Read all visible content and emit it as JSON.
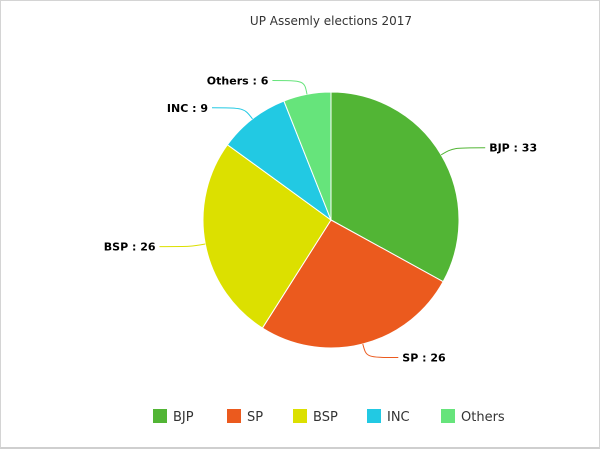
{
  "chart_data": {
    "type": "pie",
    "title": "UP Assemly elections 2017",
    "categories": [
      "BJP",
      "SP",
      "BSP",
      "INC",
      "Others"
    ],
    "values": [
      33,
      26,
      26,
      9,
      6
    ],
    "data_labels": [
      "BJP : 33",
      "SP : 26",
      "BSP : 26",
      "INC : 9",
      "Others : 6"
    ],
    "colors": [
      "#52b535",
      "#eb5a1e",
      "#dce000",
      "#22c9e3",
      "#66e47b"
    ],
    "legend": {
      "placement": "bottom",
      "items": [
        "BJP",
        "SP",
        "BSP",
        "INC",
        "Others"
      ]
    }
  }
}
